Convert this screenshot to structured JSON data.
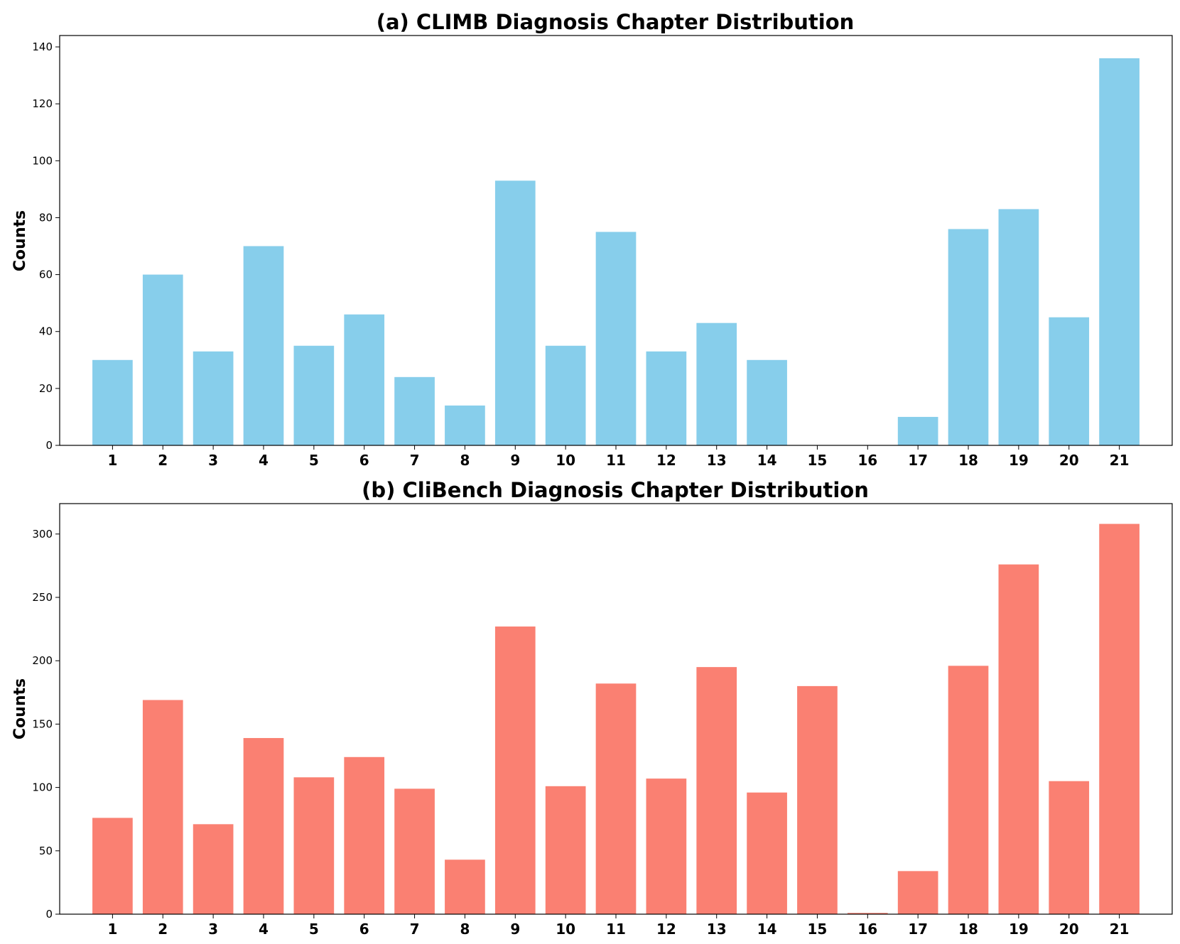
{
  "chart_data": [
    {
      "type": "bar",
      "title": "(a) CLIMB Diagnosis Chapter Distribution",
      "xlabel": "",
      "ylabel": "Counts",
      "categories": [
        "1",
        "2",
        "3",
        "4",
        "5",
        "6",
        "7",
        "8",
        "9",
        "10",
        "11",
        "12",
        "13",
        "14",
        "15",
        "16",
        "17",
        "18",
        "19",
        "20",
        "21"
      ],
      "values": [
        30,
        60,
        33,
        70,
        35,
        46,
        24,
        14,
        93,
        35,
        75,
        33,
        43,
        30,
        0,
        0,
        10,
        76,
        83,
        45,
        136
      ],
      "ylim": [
        0,
        144
      ],
      "yticks": [
        0,
        20,
        40,
        60,
        80,
        100,
        120,
        140
      ],
      "color": "#87CEEB",
      "grid": false
    },
    {
      "type": "bar",
      "title": "(b) CliBench Diagnosis Chapter Distribution",
      "xlabel": "",
      "ylabel": "Counts",
      "categories": [
        "1",
        "2",
        "3",
        "4",
        "5",
        "6",
        "7",
        "8",
        "9",
        "10",
        "11",
        "12",
        "13",
        "14",
        "15",
        "16",
        "17",
        "18",
        "19",
        "20",
        "21"
      ],
      "values": [
        76,
        169,
        71,
        139,
        108,
        124,
        99,
        43,
        227,
        101,
        182,
        107,
        195,
        96,
        180,
        1,
        34,
        196,
        276,
        105,
        308
      ],
      "ylim": [
        0,
        324
      ],
      "yticks": [
        0,
        50,
        100,
        150,
        200,
        250,
        300
      ],
      "color": "#FA8072",
      "grid": false
    }
  ]
}
